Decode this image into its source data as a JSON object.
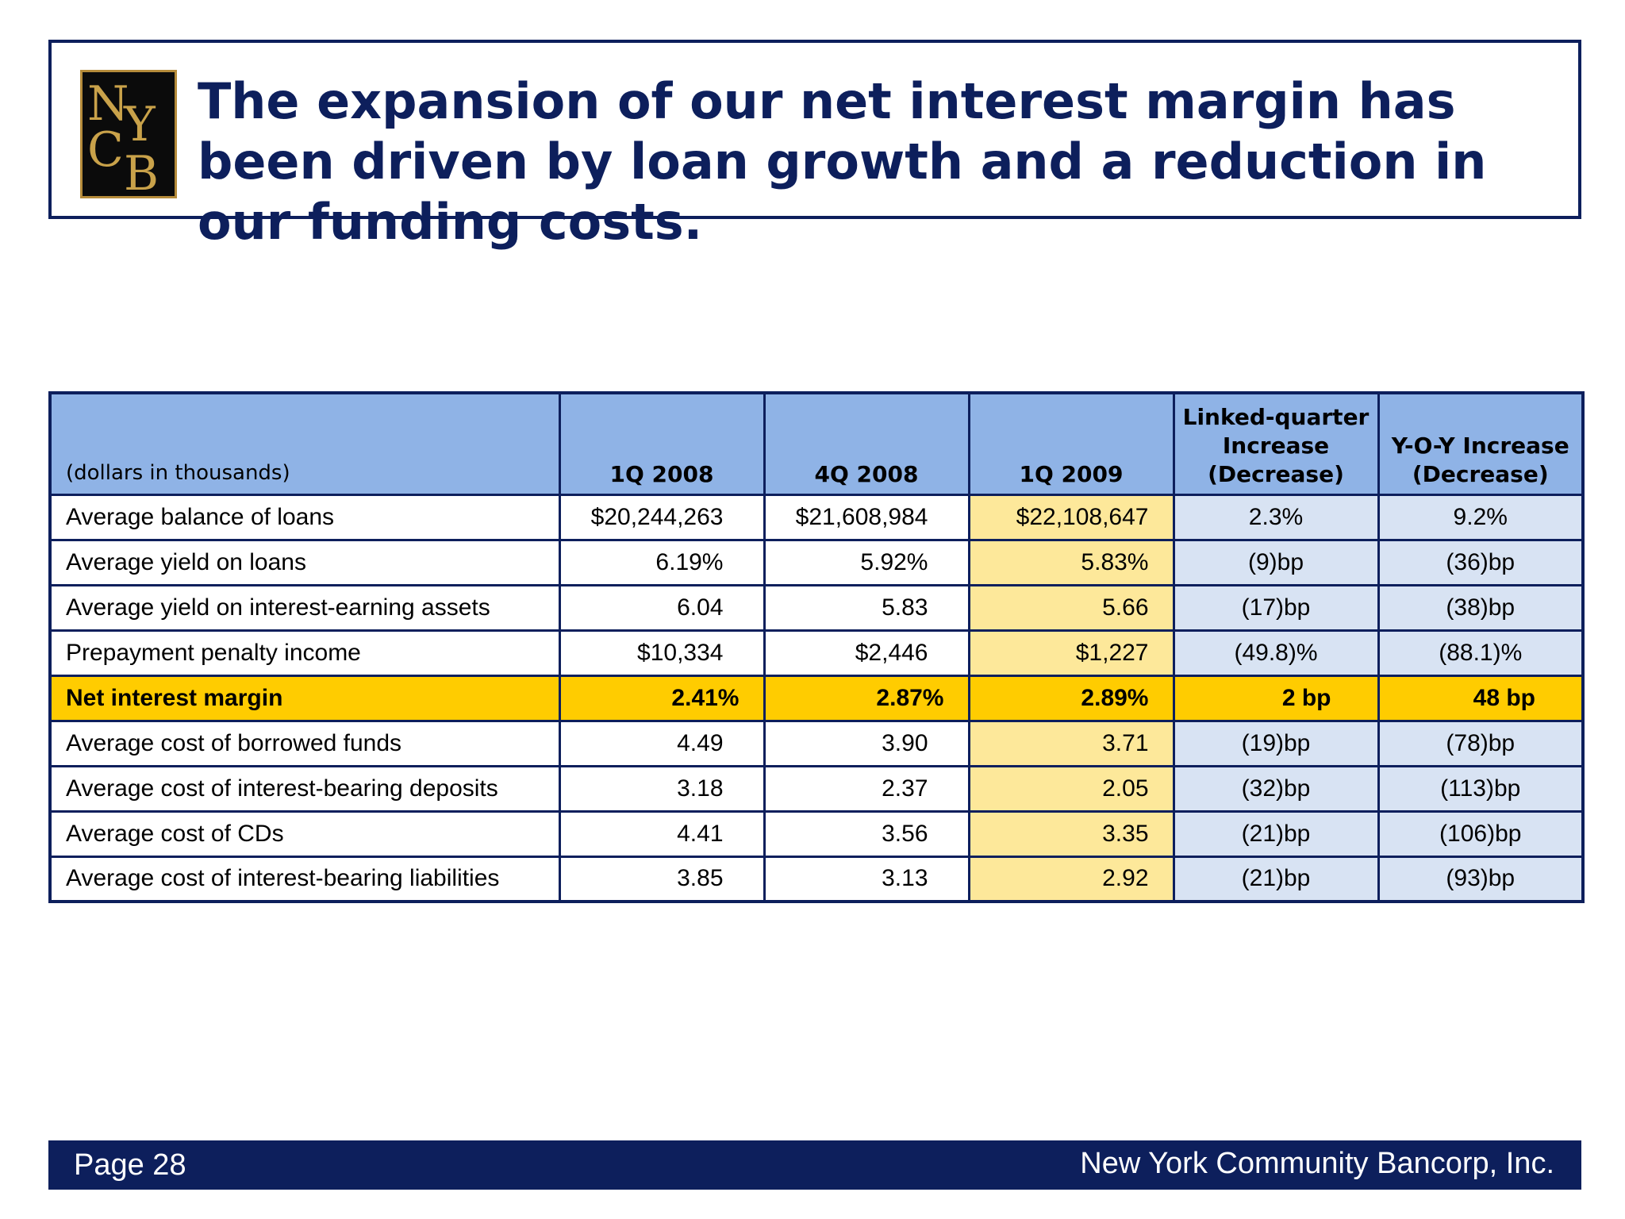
{
  "header": {
    "logo_text": "NYCB",
    "title": "The expansion of our net interest margin has been driven by loan growth and a reduction in our funding costs."
  },
  "table": {
    "columns": [
      "(dollars in thousands)",
      "1Q 2008",
      "4Q 2008",
      "1Q 2009",
      "Linked-quarter Increase (Decrease)",
      "Y-O-Y Increase (Decrease)"
    ],
    "rows": [
      [
        "Average balance of loans",
        "$20,244,263",
        "$21,608,984",
        "$22,108,647",
        "2.3%",
        "9.2%"
      ],
      [
        "Average yield on loans",
        "6.19%",
        "5.92%",
        "5.83%",
        "(9)bp",
        "(36)bp"
      ],
      [
        "Average yield on interest-earning assets",
        "6.04",
        "5.83",
        "5.66",
        "(17)bp",
        "(38)bp"
      ],
      [
        "Prepayment penalty income",
        "$10,334",
        "$2,446",
        "$1,227",
        "(49.8)%",
        "(88.1)%"
      ],
      [
        "Net interest margin",
        "2.41%",
        "2.87%",
        "2.89%",
        "2 bp",
        "48 bp"
      ],
      [
        "Average cost of borrowed funds",
        "4.49",
        "3.90",
        "3.71",
        "(19)bp",
        "(78)bp"
      ],
      [
        "Average cost of interest-bearing deposits",
        "3.18",
        "2.37",
        "2.05",
        "(32)bp",
        "(113)bp"
      ],
      [
        "Average cost of CDs",
        "4.41",
        "3.56",
        "3.35",
        "(21)bp",
        "(106)bp"
      ],
      [
        "Average cost of interest-bearing liabilities",
        "3.85",
        "3.13",
        "2.92",
        "(21)bp",
        "(93)bp"
      ]
    ]
  },
  "footer": {
    "page": "Page 28",
    "company": "New York Community Bancorp, Inc."
  },
  "colors": {
    "navy": "#0d1f5c",
    "header_blue": "#8fb3e6",
    "highlight_yellow": "#fde89a",
    "change_blue": "#d8e3f3",
    "nim_gold": "#ffcc00"
  }
}
